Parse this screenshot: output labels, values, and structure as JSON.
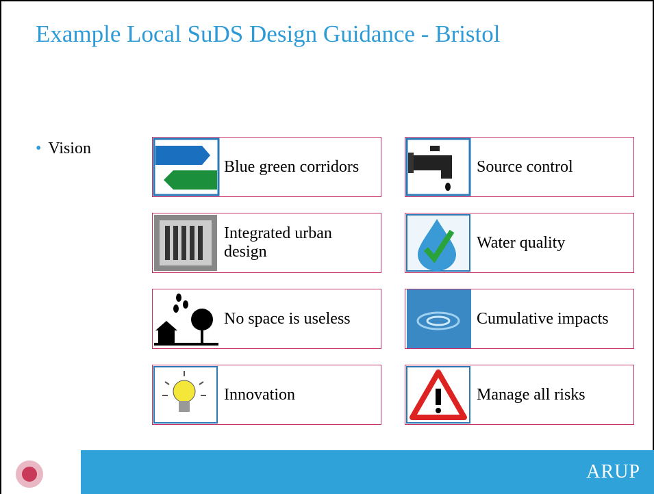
{
  "header": {
    "title": "Example Local SuDS Design Guidance - Bristol"
  },
  "bullet": "Vision",
  "items": [
    {
      "label": "Blue green corridors"
    },
    {
      "label": "Source control"
    },
    {
      "label": "Integrated urban design"
    },
    {
      "label": "Water quality"
    },
    {
      "label": "No space is useless"
    },
    {
      "label": "Cumulative impacts"
    },
    {
      "label": "Innovation"
    },
    {
      "label": "Manage all risks"
    }
  ],
  "footer": {
    "brand": "ARUP"
  }
}
